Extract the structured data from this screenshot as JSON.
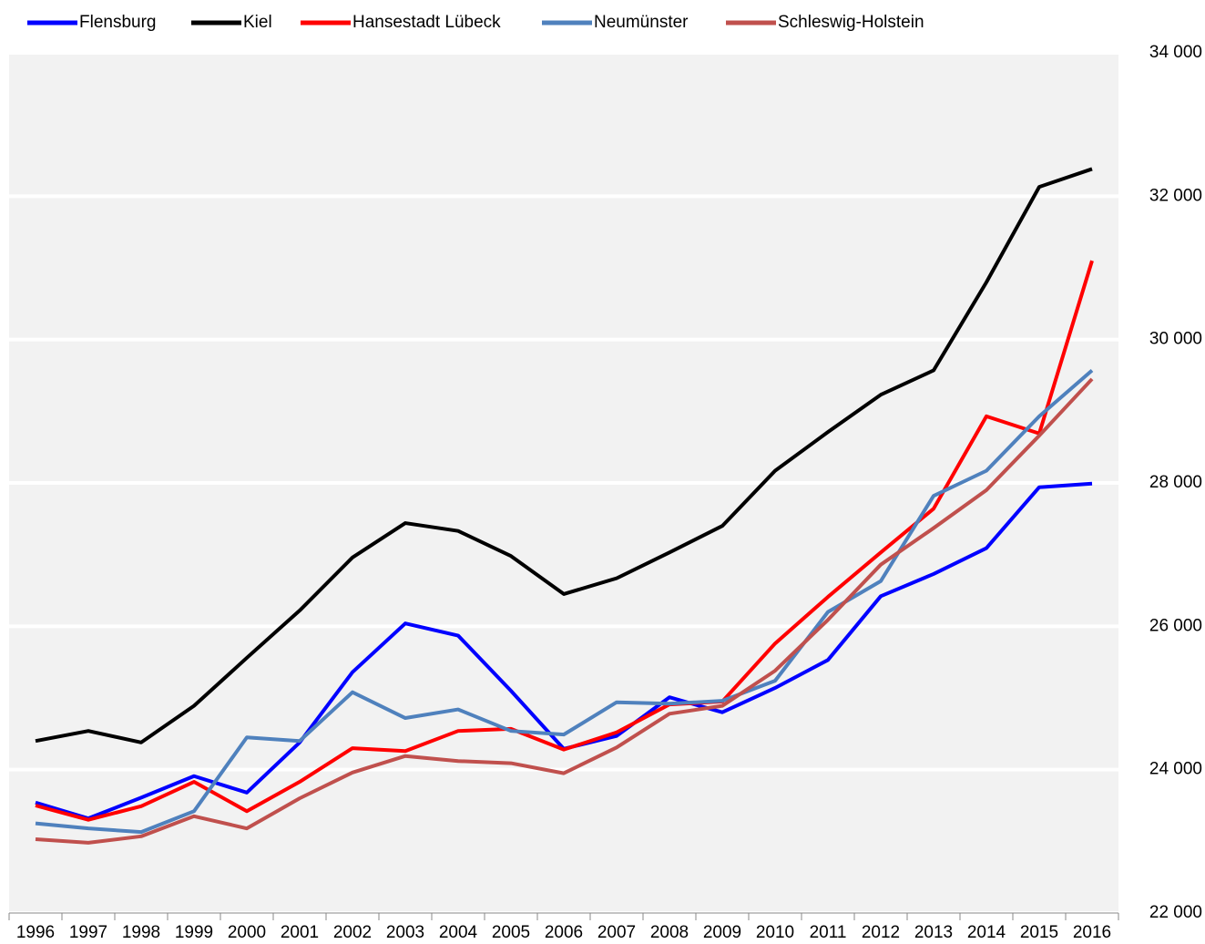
{
  "chart_data": {
    "type": "line",
    "categories": [
      "1996",
      "1997",
      "1998",
      "1999",
      "2000",
      "2001",
      "2002",
      "2003",
      "2004",
      "2005",
      "2006",
      "2007",
      "2008",
      "2009",
      "2010",
      "2011",
      "2012",
      "2013",
      "2014",
      "2015",
      "2016"
    ],
    "series": [
      {
        "name": "Flensburg",
        "color": "#0000ff",
        "values": [
          23540,
          23320,
          23610,
          23910,
          23680,
          24380,
          25360,
          26040,
          25870,
          25100,
          24290,
          24470,
          25010,
          24800,
          25140,
          25530,
          26420,
          26730,
          27090,
          27940,
          27990
        ]
      },
      {
        "name": "Kiel",
        "color": "#000000",
        "values": [
          24400,
          24540,
          24380,
          24890,
          25560,
          26220,
          26960,
          27440,
          27330,
          26980,
          26450,
          26670,
          27030,
          27400,
          28170,
          28710,
          29230,
          29570,
          30800,
          32130,
          32380
        ]
      },
      {
        "name": "Hansestadt Lübeck",
        "color": "#ff0000",
        "values": [
          23500,
          23300,
          23490,
          23830,
          23420,
          23830,
          24300,
          24260,
          24540,
          24570,
          24280,
          24520,
          24910,
          24950,
          25760,
          26410,
          27030,
          27640,
          28930,
          28690,
          31100
        ]
      },
      {
        "name": "Neumünster",
        "color": "#4f81bd",
        "values": [
          23250,
          23180,
          23130,
          23420,
          24450,
          24400,
          25080,
          24720,
          24840,
          24540,
          24490,
          24940,
          24920,
          24960,
          25240,
          26200,
          26630,
          27820,
          28170,
          28930,
          29570
        ]
      },
      {
        "name": "Schleswig-Holstein",
        "color": "#c0504d",
        "values": [
          23030,
          22980,
          23070,
          23350,
          23180,
          23600,
          23960,
          24190,
          24120,
          24090,
          23950,
          24310,
          24780,
          24890,
          25380,
          26090,
          26860,
          27370,
          27900,
          28660,
          29450
        ]
      }
    ],
    "ylim": [
      22000,
      34000
    ],
    "yticks": [
      {
        "value": 22000,
        "label": "22 000"
      },
      {
        "value": 24000,
        "label": "24 000"
      },
      {
        "value": 26000,
        "label": "26 000"
      },
      {
        "value": 28000,
        "label": "28 000"
      },
      {
        "value": 30000,
        "label": "30 000"
      },
      {
        "value": 32000,
        "label": "32 000"
      },
      {
        "value": 34000,
        "label": "34 000"
      }
    ],
    "grid": true,
    "legend": "top"
  }
}
